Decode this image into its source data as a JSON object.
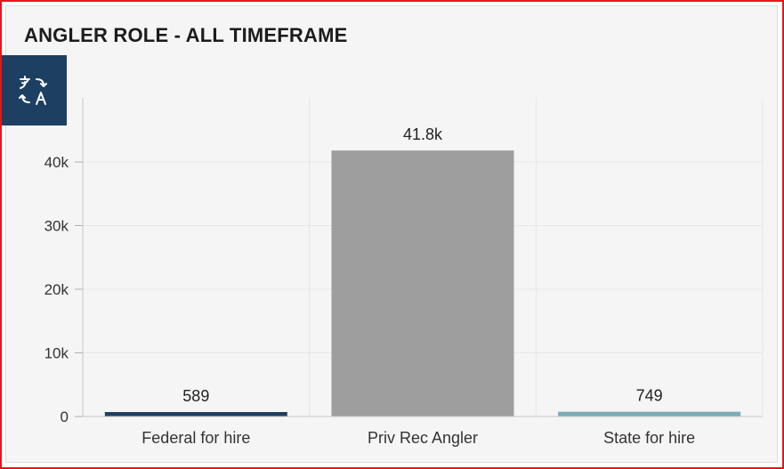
{
  "header": {
    "title": "ANGLER ROLE - ALL TIMEFRAME"
  },
  "toolbar": {
    "translate_icon": "translate-icon"
  },
  "colors": {
    "frame_border": "#e8151b",
    "card_bg": "#f5f5f5",
    "translate_button_bg": "#1d3f61",
    "federal": "#1d3f61",
    "priv_rec": "#9e9e9e",
    "state": "#7aadb5"
  },
  "chart_data": {
    "type": "bar",
    "categories": [
      "Federal for hire",
      "Priv Rec Angler",
      "State for hire"
    ],
    "values": [
      589,
      41800,
      749
    ],
    "value_labels": [
      "589",
      "41.8k",
      "749"
    ],
    "bar_colors": [
      "#1d3f61",
      "#9e9e9e",
      "#7aadb5"
    ],
    "ylim": [
      0,
      50000
    ],
    "yticks": [
      0,
      10000,
      20000,
      30000,
      40000
    ],
    "ytick_labels": [
      "0",
      "10k",
      "20k",
      "30k",
      "40k"
    ],
    "grid": true,
    "legend": "none"
  }
}
